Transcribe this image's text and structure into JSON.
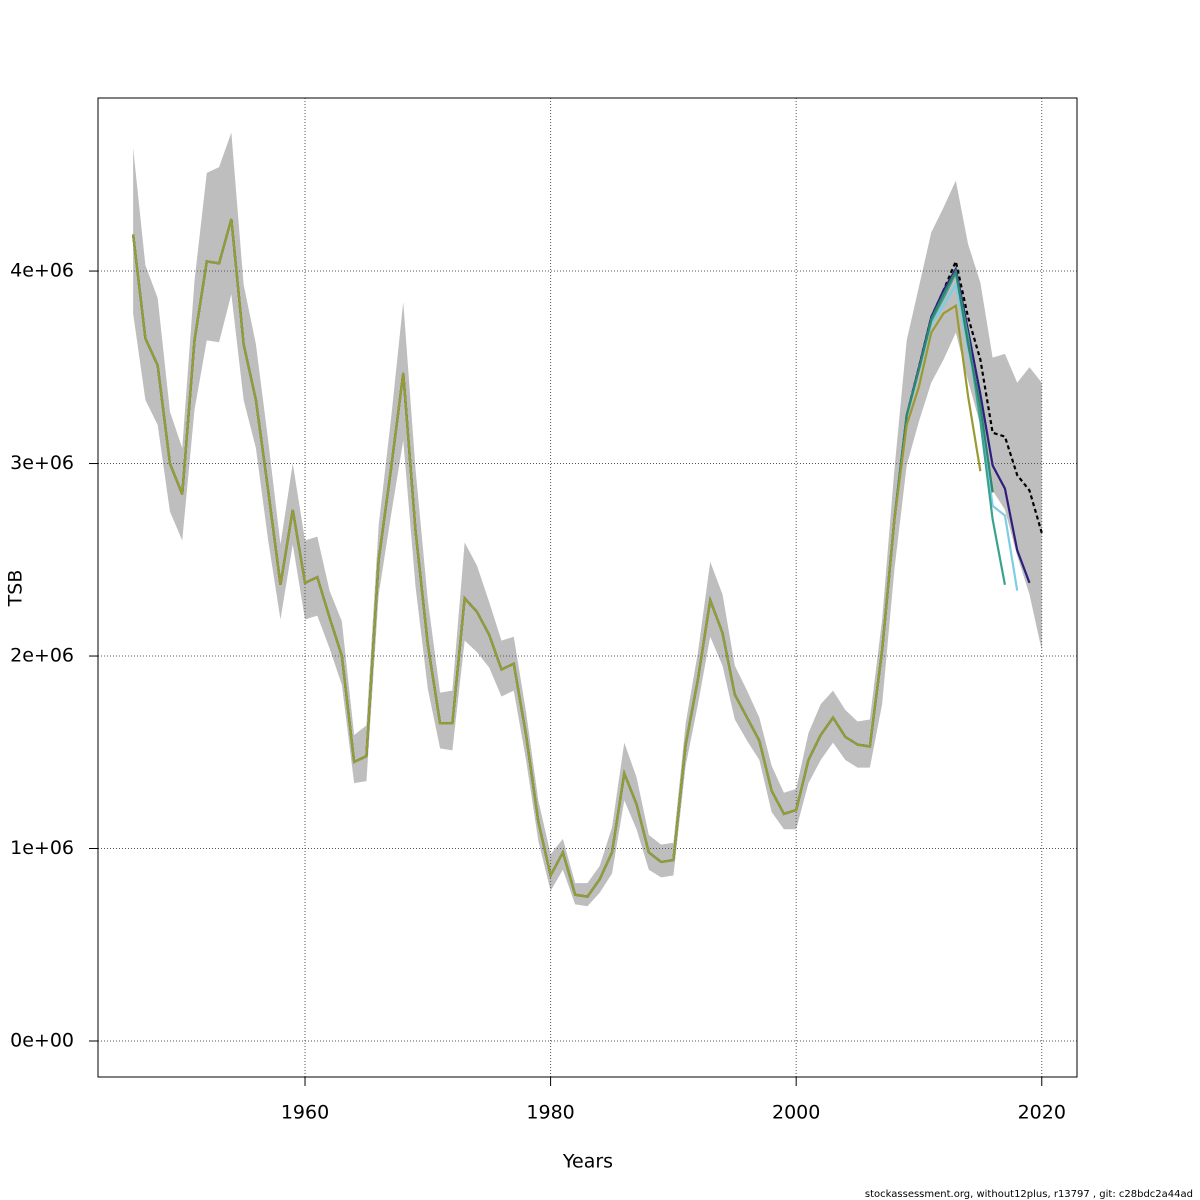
{
  "chart_data": {
    "type": "line",
    "x_label": "Years",
    "y_label": "TSB",
    "footer": "stockassessment.org, without12plus, r13797 , git: c28bdc2a44ad",
    "x": [
      1946,
      1947,
      1948,
      1949,
      1950,
      1951,
      1952,
      1953,
      1954,
      1955,
      1956,
      1957,
      1958,
      1959,
      1960,
      1961,
      1962,
      1963,
      1964,
      1965,
      1966,
      1967,
      1968,
      1969,
      1970,
      1971,
      1972,
      1973,
      1974,
      1975,
      1976,
      1977,
      1978,
      1979,
      1980,
      1981,
      1982,
      1983,
      1984,
      1985,
      1986,
      1987,
      1988,
      1989,
      1990,
      1991,
      1992,
      1993,
      1994,
      1995,
      1996,
      1997,
      1998,
      1999,
      2000,
      2001,
      2002,
      2003,
      2004,
      2005,
      2006,
      2007,
      2008,
      2009,
      2010,
      2011,
      2012,
      2013,
      2014,
      2015,
      2016,
      2017,
      2018,
      2019,
      2020
    ],
    "band": {
      "color": "#bebebe",
      "upper": [
        4640000.0,
        4030000.0,
        3860000.0,
        3270000.0,
        3080000.0,
        3950000.0,
        4510000.0,
        4540000.0,
        4720000.0,
        3930000.0,
        3620000.0,
        3120000.0,
        2580000.0,
        3000000.0,
        2600000.0,
        2620000.0,
        2340000.0,
        2180000.0,
        1590000.0,
        1640000.0,
        2680000.0,
        3230000.0,
        3840000.0,
        2970000.0,
        2290000.0,
        1810000.0,
        1820000.0,
        2590000.0,
        2470000.0,
        2280000.0,
        2080000.0,
        2100000.0,
        1710000.0,
        1250000.0,
        970000.0,
        1050000.0,
        820000.0,
        820000.0,
        910000.0,
        1110000.0,
        1550000.0,
        1370000.0,
        1070000.0,
        1020000.0,
        1030000.0,
        1650000.0,
        2020000.0,
        2490000.0,
        2320000.0,
        1950000.0,
        1820000.0,
        1680000.0,
        1430000.0,
        1290000.0,
        1310000.0,
        1600000.0,
        1750000.0,
        1820000.0,
        1720000.0,
        1660000.0,
        1670000.0,
        2190000.0,
        2970000.0,
        3640000.0,
        3920000.0,
        4200000.0,
        4330000.0,
        4470000.0,
        4140000.0,
        3940000.0,
        3550000.0,
        3570000.0,
        3420000.0,
        3500000.0,
        3420000.0
      ],
      "lower": [
        3780000.0,
        3330000.0,
        3200000.0,
        2750000.0,
        2600000.0,
        3280000.0,
        3640000.0,
        3630000.0,
        3880000.0,
        3330000.0,
        3080000.0,
        2600000.0,
        2190000.0,
        2580000.0,
        2190000.0,
        2210000.0,
        2040000.0,
        1850000.0,
        1340000.0,
        1350000.0,
        2320000.0,
        2730000.0,
        3120000.0,
        2360000.0,
        1830000.0,
        1520000.0,
        1510000.0,
        2080000.0,
        2020000.0,
        1940000.0,
        1790000.0,
        1820000.0,
        1460000.0,
        1040000.0,
        780000.0,
        890000.0,
        710000.0,
        700000.0,
        770000.0,
        870000.0,
        1250000.0,
        1100000.0,
        890000.0,
        850000.0,
        860000.0,
        1430000.0,
        1750000.0,
        2100000.0,
        1950000.0,
        1670000.0,
        1560000.0,
        1460000.0,
        1190000.0,
        1100000.0,
        1100000.0,
        1340000.0,
        1460000.0,
        1550000.0,
        1460000.0,
        1420000.0,
        1420000.0,
        1750000.0,
        2450000.0,
        2990000.0,
        3220000.0,
        3420000.0,
        3540000.0,
        3680000.0,
        3430000.0,
        3200000.0,
        2860000.0,
        2760000.0,
        2520000.0,
        2320000.0,
        2030000.0
      ]
    },
    "series": [
      {
        "color": "#000000",
        "dashed": true,
        "values": [
          4190000.0,
          3650000.0,
          3510000.0,
          3000000.0,
          2840000.0,
          3640000.0,
          4050000.0,
          4040000.0,
          4270000.0,
          3620000.0,
          3330000.0,
          2860000.0,
          2370000.0,
          2760000.0,
          2380000.0,
          2410000.0,
          2200000.0,
          2000000.0,
          1450000.0,
          1480000.0,
          2500000.0,
          2970000.0,
          3470000.0,
          2650000.0,
          2060000.0,
          1650000.0,
          1650000.0,
          2300000.0,
          2230000.0,
          2110000.0,
          1930000.0,
          1960000.0,
          1590000.0,
          1140000.0,
          860000.0,
          980000.0,
          760000.0,
          750000.0,
          840000.0,
          980000.0,
          1390000.0,
          1230000.0,
          980000.0,
          930000.0,
          940000.0,
          1540000.0,
          1880000.0,
          2290000.0,
          2120000.0,
          1800000.0,
          1680000.0,
          1560000.0,
          1300000.0,
          1180000.0,
          1200000.0,
          1460000.0,
          1590000.0,
          1680000.0,
          1580000.0,
          1540000.0,
          1530000.0,
          2030000.0,
          2710000.0,
          3250000.0,
          3500000.0,
          3760000.0,
          3900000.0,
          4050000.0,
          3760000.0,
          3540000.0,
          3160000.0,
          3140000.0,
          2940000.0,
          2860000.0,
          2640000.0
        ]
      },
      {
        "color": "#2e1f7e",
        "values": [
          4190000.0,
          3650000.0,
          3510000.0,
          3000000.0,
          2840000.0,
          3640000.0,
          4050000.0,
          4040000.0,
          4270000.0,
          3620000.0,
          3330000.0,
          2860000.0,
          2370000.0,
          2760000.0,
          2380000.0,
          2410000.0,
          2200000.0,
          2000000.0,
          1450000.0,
          1480000.0,
          2500000.0,
          2970000.0,
          3470000.0,
          2650000.0,
          2060000.0,
          1650000.0,
          1650000.0,
          2300000.0,
          2230000.0,
          2110000.0,
          1930000.0,
          1960000.0,
          1590000.0,
          1140000.0,
          860000.0,
          980000.0,
          760000.0,
          750000.0,
          840000.0,
          980000.0,
          1390000.0,
          1230000.0,
          980000.0,
          930000.0,
          940000.0,
          1540000.0,
          1880000.0,
          2290000.0,
          2120000.0,
          1800000.0,
          1680000.0,
          1560000.0,
          1300000.0,
          1180000.0,
          1200000.0,
          1460000.0,
          1590000.0,
          1680000.0,
          1580000.0,
          1540000.0,
          1530000.0,
          2030000.0,
          2710000.0,
          3250000.0,
          3500000.0,
          3760000.0,
          3900000.0,
          4010000.0,
          3690000.0,
          3360000.0,
          2990000.0,
          2870000.0,
          2550000.0,
          2380000.0,
          null
        ]
      },
      {
        "color": "#7fcde3",
        "values": [
          4190000.0,
          3650000.0,
          3510000.0,
          3000000.0,
          2840000.0,
          3640000.0,
          4050000.0,
          4040000.0,
          4270000.0,
          3620000.0,
          3330000.0,
          2860000.0,
          2370000.0,
          2760000.0,
          2380000.0,
          2410000.0,
          2200000.0,
          2000000.0,
          1450000.0,
          1480000.0,
          2500000.0,
          2970000.0,
          3470000.0,
          2650000.0,
          2060000.0,
          1650000.0,
          1650000.0,
          2300000.0,
          2230000.0,
          2110000.0,
          1930000.0,
          1960000.0,
          1590000.0,
          1140000.0,
          860000.0,
          980000.0,
          760000.0,
          750000.0,
          840000.0,
          980000.0,
          1390000.0,
          1230000.0,
          980000.0,
          930000.0,
          940000.0,
          1540000.0,
          1880000.0,
          2290000.0,
          2120000.0,
          1800000.0,
          1680000.0,
          1560000.0,
          1300000.0,
          1180000.0,
          1200000.0,
          1460000.0,
          1590000.0,
          1680000.0,
          1580000.0,
          1540000.0,
          1530000.0,
          2030000.0,
          2710000.0,
          3240000.0,
          3480000.0,
          3720000.0,
          3820000.0,
          3930000.0,
          3600000.0,
          3250000.0,
          2780000.0,
          2730000.0,
          2340000.0,
          null,
          null
        ]
      },
      {
        "color": "#3aa38f",
        "values": [
          4190000.0,
          3650000.0,
          3510000.0,
          3000000.0,
          2840000.0,
          3640000.0,
          4050000.0,
          4040000.0,
          4270000.0,
          3620000.0,
          3330000.0,
          2860000.0,
          2370000.0,
          2760000.0,
          2380000.0,
          2410000.0,
          2200000.0,
          2000000.0,
          1450000.0,
          1480000.0,
          2500000.0,
          2970000.0,
          3470000.0,
          2650000.0,
          2060000.0,
          1650000.0,
          1650000.0,
          2300000.0,
          2230000.0,
          2110000.0,
          1930000.0,
          1960000.0,
          1590000.0,
          1140000.0,
          860000.0,
          980000.0,
          760000.0,
          750000.0,
          840000.0,
          980000.0,
          1390000.0,
          1230000.0,
          980000.0,
          930000.0,
          940000.0,
          1540000.0,
          1880000.0,
          2290000.0,
          2120000.0,
          1800000.0,
          1680000.0,
          1560000.0,
          1300000.0,
          1180000.0,
          1200000.0,
          1460000.0,
          1590000.0,
          1680000.0,
          1580000.0,
          1540000.0,
          1530000.0,
          2030000.0,
          2710000.0,
          3250000.0,
          3490000.0,
          3740000.0,
          3860000.0,
          3990000.0,
          3660000.0,
          3220000.0,
          2710000.0,
          2370000.0,
          null,
          null,
          null
        ]
      },
      {
        "color": "#2f8570",
        "values": [
          4190000.0,
          3650000.0,
          3510000.0,
          3000000.0,
          2840000.0,
          3640000.0,
          4050000.0,
          4040000.0,
          4270000.0,
          3620000.0,
          3330000.0,
          2860000.0,
          2370000.0,
          2760000.0,
          2380000.0,
          2410000.0,
          2200000.0,
          2000000.0,
          1450000.0,
          1480000.0,
          2500000.0,
          2970000.0,
          3470000.0,
          2650000.0,
          2060000.0,
          1650000.0,
          1650000.0,
          2300000.0,
          2230000.0,
          2110000.0,
          1930000.0,
          1960000.0,
          1590000.0,
          1140000.0,
          860000.0,
          980000.0,
          760000.0,
          750000.0,
          840000.0,
          980000.0,
          1390000.0,
          1230000.0,
          980000.0,
          930000.0,
          940000.0,
          1540000.0,
          1880000.0,
          2290000.0,
          2120000.0,
          1800000.0,
          1680000.0,
          1560000.0,
          1300000.0,
          1180000.0,
          1200000.0,
          1460000.0,
          1590000.0,
          1680000.0,
          1580000.0,
          1540000.0,
          1530000.0,
          2030000.0,
          2710000.0,
          3250000.0,
          3490000.0,
          3750000.0,
          3880000.0,
          4000000.0,
          3620000.0,
          3300000.0,
          2850000.0,
          null,
          null,
          null,
          null
        ]
      },
      {
        "color": "#9a9a33",
        "values": [
          4190000.0,
          3650000.0,
          3510000.0,
          3000000.0,
          2840000.0,
          3640000.0,
          4050000.0,
          4040000.0,
          4270000.0,
          3620000.0,
          3330000.0,
          2860000.0,
          2370000.0,
          2760000.0,
          2380000.0,
          2410000.0,
          2200000.0,
          2000000.0,
          1450000.0,
          1480000.0,
          2500000.0,
          2970000.0,
          3470000.0,
          2650000.0,
          2060000.0,
          1650000.0,
          1650000.0,
          2300000.0,
          2230000.0,
          2110000.0,
          1930000.0,
          1960000.0,
          1590000.0,
          1140000.0,
          860000.0,
          980000.0,
          760000.0,
          750000.0,
          840000.0,
          980000.0,
          1390000.0,
          1230000.0,
          980000.0,
          930000.0,
          940000.0,
          1540000.0,
          1880000.0,
          2290000.0,
          2120000.0,
          1800000.0,
          1680000.0,
          1560000.0,
          1300000.0,
          1180000.0,
          1200000.0,
          1460000.0,
          1590000.0,
          1680000.0,
          1580000.0,
          1540000.0,
          1530000.0,
          2030000.0,
          2710000.0,
          3200000.0,
          3400000.0,
          3680000.0,
          3780000.0,
          3820000.0,
          3350000.0,
          2960000.0,
          null,
          null,
          null,
          null,
          null
        ]
      }
    ],
    "xlim": [
      1943.14,
      2022.87
    ],
    "xticks": [
      1960,
      1980,
      2000,
      2020
    ],
    "ylim": [
      -187000,
      4899000
    ],
    "yticks": [
      {
        "value": 0,
        "label": "0e+00"
      },
      {
        "value": 1000000,
        "label": "1e+06"
      },
      {
        "value": 2000000,
        "label": "2e+06"
      },
      {
        "value": 3000000,
        "label": "3e+06"
      },
      {
        "value": 4000000,
        "label": "4e+06"
      }
    ],
    "grid": true
  }
}
